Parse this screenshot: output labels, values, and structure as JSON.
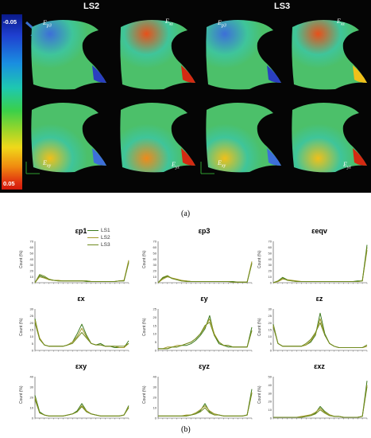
{
  "panel_a": {
    "headers": [
      "LS2",
      "LS3"
    ],
    "colorbar": {
      "max_label": "-0.05",
      "min_label": "0.05"
    },
    "thumb_labels": [
      {
        "main": "E",
        "sub": "p3"
      },
      {
        "main": "E",
        "sub": "xz"
      },
      {
        "main": "E",
        "sub": "p3"
      },
      {
        "main": "E",
        "sub": "xz"
      },
      {
        "main": "E",
        "sub": "xy"
      },
      {
        "main": "E",
        "sub": "yz"
      },
      {
        "main": "E",
        "sub": "xy"
      },
      {
        "main": "E",
        "sub": "yz"
      }
    ]
  },
  "captions": {
    "a": "(a)",
    "b": "(b)"
  },
  "legend": [
    {
      "name": "LS1",
      "color": "#3c7a1e"
    },
    {
      "name": "LS2",
      "color": "#a39a2a"
    },
    {
      "name": "LS3",
      "color": "#6f8a1e"
    }
  ],
  "chart_data": [
    {
      "type": "line",
      "title": "εp1",
      "ylabel": "Count (%)",
      "ylim": [
        0,
        70
      ],
      "yticks": [
        0,
        10,
        20,
        30,
        40,
        50,
        60,
        70
      ],
      "x": [
        0,
        1,
        2,
        3,
        4,
        5,
        6,
        7,
        8,
        9,
        10,
        11,
        12,
        13,
        14,
        15,
        16,
        17,
        18,
        19,
        20
      ],
      "series": [
        {
          "name": "LS1",
          "values": [
            0,
            12,
            9,
            5,
            4,
            3,
            3,
            3,
            3,
            3,
            3,
            2,
            2,
            2,
            2,
            2,
            2,
            2,
            3,
            3,
            36
          ]
        },
        {
          "name": "LS2",
          "values": [
            0,
            10,
            8,
            5,
            4,
            4,
            3,
            3,
            3,
            3,
            3,
            3,
            2,
            2,
            2,
            2,
            2,
            2,
            3,
            4,
            38
          ]
        },
        {
          "name": "LS3",
          "values": [
            0,
            14,
            11,
            6,
            4,
            3,
            3,
            3,
            3,
            3,
            3,
            3,
            2,
            2,
            2,
            2,
            2,
            2,
            3,
            3,
            34
          ]
        }
      ]
    },
    {
      "type": "line",
      "title": "εp3",
      "ylabel": "Count (%)",
      "ylim": [
        0,
        70
      ],
      "yticks": [
        0,
        10,
        20,
        30,
        40,
        50,
        60,
        70
      ],
      "x": [
        0,
        1,
        2,
        3,
        4,
        5,
        6,
        7,
        8,
        9,
        10,
        11,
        12,
        13,
        14,
        15,
        16,
        17,
        18,
        19,
        20
      ],
      "series": [
        {
          "name": "LS1",
          "values": [
            0,
            8,
            11,
            7,
            5,
            3,
            3,
            2,
            2,
            2,
            2,
            2,
            2,
            2,
            2,
            2,
            2,
            1,
            1,
            1,
            34
          ]
        },
        {
          "name": "LS2",
          "values": [
            0,
            6,
            10,
            8,
            6,
            4,
            3,
            2,
            2,
            2,
            2,
            2,
            2,
            2,
            2,
            2,
            1,
            1,
            1,
            1,
            36
          ]
        },
        {
          "name": "LS3",
          "values": [
            0,
            9,
            12,
            7,
            5,
            3,
            2,
            2,
            2,
            2,
            2,
            2,
            2,
            2,
            2,
            2,
            1,
            1,
            1,
            1,
            32
          ]
        }
      ]
    },
    {
      "type": "line",
      "title": "εeqv",
      "ylabel": "Count (%)",
      "ylim": [
        0,
        70
      ],
      "yticks": [
        0,
        10,
        20,
        30,
        40,
        50,
        60,
        70
      ],
      "x": [
        0,
        1,
        2,
        3,
        4,
        5,
        6,
        7,
        8,
        9,
        10,
        11,
        12,
        13,
        14,
        15,
        16,
        17,
        18,
        19,
        20
      ],
      "series": [
        {
          "name": "LS1",
          "values": [
            0,
            3,
            9,
            5,
            3,
            2,
            2,
            2,
            2,
            2,
            2,
            2,
            2,
            2,
            2,
            2,
            2,
            2,
            3,
            3,
            64
          ]
        },
        {
          "name": "LS2",
          "values": [
            0,
            2,
            6,
            5,
            4,
            3,
            2,
            2,
            2,
            2,
            2,
            2,
            2,
            2,
            2,
            2,
            2,
            2,
            2,
            3,
            55
          ]
        },
        {
          "name": "LS3",
          "values": [
            0,
            3,
            8,
            4,
            3,
            2,
            2,
            2,
            2,
            2,
            2,
            2,
            2,
            2,
            2,
            2,
            2,
            2,
            2,
            3,
            60
          ]
        }
      ]
    },
    {
      "type": "line",
      "title": "εx",
      "ylabel": "Count (%)",
      "ylim": [
        0,
        30
      ],
      "yticks": [
        0,
        5,
        10,
        15,
        20,
        25,
        30
      ],
      "x": [
        0,
        1,
        2,
        3,
        4,
        5,
        6,
        7,
        8,
        9,
        10,
        11,
        12,
        13,
        14,
        15,
        16,
        17,
        18,
        19,
        20
      ],
      "series": [
        {
          "name": "LS1",
          "values": [
            23,
            8,
            4,
            3,
            3,
            3,
            3,
            4,
            6,
            12,
            19,
            11,
            5,
            4,
            5,
            3,
            3,
            2,
            2,
            2,
            7
          ]
        },
        {
          "name": "LS2",
          "values": [
            22,
            9,
            4,
            3,
            3,
            3,
            3,
            4,
            6,
            10,
            16,
            10,
            5,
            4,
            4,
            3,
            3,
            3,
            2,
            2,
            5
          ]
        },
        {
          "name": "LS3",
          "values": [
            20,
            8,
            4,
            3,
            3,
            3,
            3,
            4,
            5,
            9,
            13,
            9,
            5,
            4,
            4,
            3,
            3,
            3,
            3,
            3,
            5
          ]
        }
      ]
    },
    {
      "type": "line",
      "title": "εy",
      "ylabel": "Count (%)",
      "ylim": [
        0,
        25
      ],
      "yticks": [
        0,
        5,
        10,
        15,
        20,
        25
      ],
      "x": [
        0,
        1,
        2,
        3,
        4,
        5,
        6,
        7,
        8,
        9,
        10,
        11,
        12,
        13,
        14,
        15,
        16,
        17,
        18,
        19,
        20
      ],
      "series": [
        {
          "name": "LS1",
          "values": [
            1,
            1,
            1,
            2,
            2,
            3,
            3,
            4,
            6,
            9,
            13,
            21,
            9,
            4,
            3,
            2,
            2,
            2,
            2,
            2,
            14
          ]
        },
        {
          "name": "LS2",
          "values": [
            1,
            1,
            2,
            2,
            3,
            3,
            4,
            5,
            7,
            10,
            14,
            19,
            10,
            5,
            3,
            3,
            2,
            2,
            2,
            2,
            12
          ]
        },
        {
          "name": "LS3",
          "values": [
            1,
            1,
            1,
            2,
            2,
            3,
            4,
            5,
            7,
            10,
            15,
            17,
            9,
            5,
            3,
            3,
            2,
            2,
            2,
            2,
            12
          ]
        }
      ]
    },
    {
      "type": "line",
      "title": "εz",
      "ylabel": "Count (%)",
      "ylim": [
        0,
        30
      ],
      "yticks": [
        0,
        5,
        10,
        15,
        20,
        25,
        30
      ],
      "x": [
        0,
        1,
        2,
        3,
        4,
        5,
        6,
        7,
        8,
        9,
        10,
        11,
        12,
        13,
        14,
        15,
        16,
        17,
        18,
        19,
        20
      ],
      "series": [
        {
          "name": "LS1",
          "values": [
            19,
            5,
            3,
            3,
            3,
            3,
            3,
            4,
            6,
            11,
            27,
            12,
            5,
            3,
            2,
            2,
            2,
            2,
            2,
            2,
            3
          ]
        },
        {
          "name": "LS2",
          "values": [
            18,
            5,
            3,
            3,
            3,
            3,
            3,
            4,
            7,
            12,
            23,
            11,
            5,
            3,
            2,
            2,
            2,
            2,
            2,
            2,
            3
          ]
        },
        {
          "name": "LS3",
          "values": [
            17,
            5,
            3,
            3,
            3,
            3,
            3,
            5,
            8,
            13,
            20,
            11,
            5,
            3,
            2,
            2,
            2,
            2,
            2,
            2,
            4
          ]
        }
      ]
    },
    {
      "type": "line",
      "title": "εxy",
      "ylabel": "Count (%)",
      "ylim": [
        0,
        40
      ],
      "yticks": [
        0,
        10,
        20,
        30,
        40
      ],
      "x": [
        0,
        1,
        2,
        3,
        4,
        5,
        6,
        7,
        8,
        9,
        10,
        11,
        12,
        13,
        14,
        15,
        16,
        17,
        18,
        19,
        20
      ],
      "series": [
        {
          "name": "LS1",
          "values": [
            22,
            6,
            3,
            2,
            2,
            2,
            2,
            3,
            4,
            7,
            14,
            7,
            4,
            3,
            2,
            2,
            2,
            2,
            2,
            3,
            12
          ]
        },
        {
          "name": "LS2",
          "values": [
            20,
            5,
            3,
            2,
            2,
            2,
            2,
            3,
            4,
            6,
            12,
            7,
            4,
            3,
            2,
            2,
            2,
            2,
            2,
            3,
            11
          ]
        },
        {
          "name": "LS3",
          "values": [
            18,
            5,
            3,
            2,
            2,
            2,
            2,
            3,
            4,
            6,
            11,
            6,
            4,
            3,
            2,
            2,
            2,
            2,
            2,
            3,
            10
          ]
        }
      ]
    },
    {
      "type": "line",
      "title": "εyz",
      "ylabel": "Count (%)",
      "ylim": [
        0,
        40
      ],
      "yticks": [
        0,
        10,
        20,
        30,
        40
      ],
      "x": [
        0,
        1,
        2,
        3,
        4,
        5,
        6,
        7,
        8,
        9,
        10,
        11,
        12,
        13,
        14,
        15,
        16,
        17,
        18,
        19,
        20
      ],
      "series": [
        {
          "name": "LS1",
          "values": [
            2,
            2,
            2,
            2,
            2,
            2,
            2,
            3,
            4,
            7,
            14,
            6,
            4,
            3,
            2,
            2,
            2,
            2,
            2,
            3,
            28
          ]
        },
        {
          "name": "LS2",
          "values": [
            2,
            2,
            2,
            2,
            2,
            2,
            3,
            3,
            5,
            8,
            12,
            7,
            4,
            3,
            2,
            2,
            2,
            2,
            2,
            3,
            25
          ]
        },
        {
          "name": "LS3",
          "values": [
            2,
            2,
            2,
            2,
            2,
            2,
            2,
            3,
            4,
            6,
            10,
            5,
            3,
            3,
            2,
            2,
            2,
            2,
            2,
            3,
            24
          ]
        }
      ]
    },
    {
      "type": "line",
      "title": "εxz",
      "ylabel": "Count (%)",
      "ylim": [
        0,
        50
      ],
      "yticks": [
        0,
        10,
        20,
        30,
        40,
        50
      ],
      "x": [
        0,
        1,
        2,
        3,
        4,
        5,
        6,
        7,
        8,
        9,
        10,
        11,
        12,
        13,
        14,
        15,
        16,
        17,
        18,
        19,
        20
      ],
      "series": [
        {
          "name": "LS1",
          "values": [
            1,
            1,
            1,
            1,
            1,
            1,
            1,
            2,
            3,
            6,
            14,
            8,
            4,
            2,
            2,
            1,
            1,
            1,
            1,
            2,
            45
          ]
        },
        {
          "name": "LS2",
          "values": [
            1,
            1,
            1,
            1,
            1,
            1,
            2,
            3,
            4,
            7,
            12,
            7,
            4,
            2,
            2,
            1,
            1,
            1,
            1,
            2,
            40
          ]
        },
        {
          "name": "LS3",
          "values": [
            1,
            1,
            1,
            1,
            1,
            1,
            1,
            2,
            3,
            5,
            10,
            6,
            3,
            2,
            2,
            1,
            1,
            1,
            1,
            2,
            38
          ]
        }
      ]
    }
  ]
}
